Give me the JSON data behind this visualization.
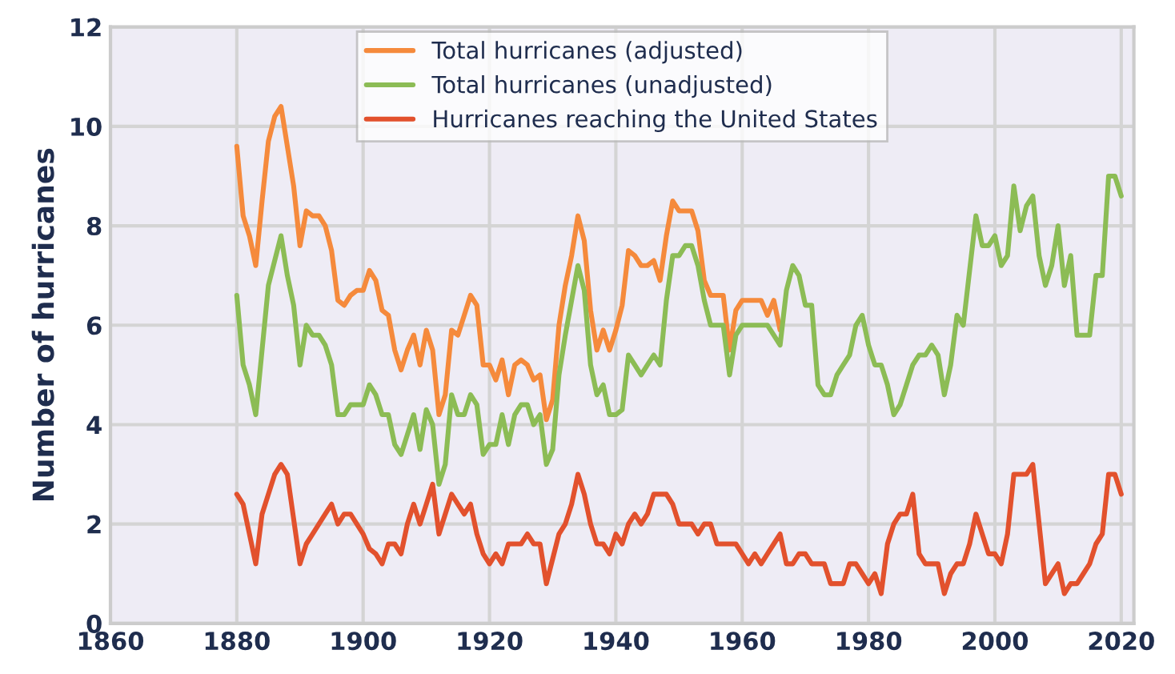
{
  "chart_data": {
    "type": "line",
    "ylabel": "Number of hurricanes",
    "xlim": [
      1860,
      2022
    ],
    "xticks": [
      1860,
      1880,
      1900,
      1920,
      1940,
      1960,
      1980,
      2000,
      2020
    ],
    "ylim": [
      0,
      12
    ],
    "yticks": [
      0,
      2,
      4,
      6,
      8,
      10,
      12
    ],
    "grid": true,
    "legend": "top",
    "marker": "none",
    "line_style": "solid",
    "series": [
      {
        "name": "Total hurricanes (adjusted)",
        "color": "#f58a3c",
        "x": [
          1880,
          1881,
          1882,
          1883,
          1884,
          1885,
          1886,
          1887,
          1888,
          1889,
          1890,
          1891,
          1892,
          1893,
          1894,
          1895,
          1896,
          1897,
          1898,
          1899,
          1900,
          1901,
          1902,
          1903,
          1904,
          1905,
          1906,
          1907,
          1908,
          1909,
          1910,
          1911,
          1912,
          1913,
          1914,
          1915,
          1916,
          1917,
          1918,
          1919,
          1920,
          1921,
          1922,
          1923,
          1924,
          1925,
          1926,
          1927,
          1928,
          1929,
          1930,
          1931,
          1932,
          1933,
          1934,
          1935,
          1936,
          1937,
          1938,
          1939,
          1940,
          1941,
          1942,
          1943,
          1944,
          1945,
          1946,
          1947,
          1948,
          1949,
          1950,
          1951,
          1952,
          1953,
          1954,
          1955,
          1956,
          1957,
          1958,
          1959,
          1960,
          1961,
          1962,
          1963,
          1964,
          1965,
          1966
        ],
        "values": [
          9.6,
          8.2,
          7.8,
          7.2,
          8.5,
          9.7,
          10.2,
          10.4,
          9.6,
          8.8,
          7.6,
          8.3,
          8.2,
          8.2,
          8.0,
          7.5,
          6.5,
          6.4,
          6.6,
          6.7,
          6.7,
          7.1,
          6.9,
          6.3,
          6.2,
          5.5,
          5.1,
          5.5,
          5.8,
          5.2,
          5.9,
          5.5,
          4.2,
          4.6,
          5.9,
          5.8,
          6.2,
          6.6,
          6.4,
          5.2,
          5.2,
          4.9,
          5.3,
          4.6,
          5.2,
          5.3,
          5.2,
          4.9,
          5.0,
          4.1,
          4.5,
          6.0,
          6.8,
          7.4,
          8.2,
          7.7,
          6.3,
          5.5,
          5.9,
          5.5,
          5.9,
          6.4,
          7.5,
          7.4,
          7.2,
          7.2,
          7.3,
          6.9,
          7.8,
          8.5,
          8.3,
          8.3,
          8.3,
          7.9,
          6.9,
          6.6,
          6.6,
          6.6,
          5.5,
          6.3,
          6.5,
          6.5,
          6.5,
          6.5,
          6.2,
          6.5,
          5.9
        ]
      },
      {
        "name": "Total hurricanes (unadjusted)",
        "color": "#8cbc55",
        "x": [
          1880,
          1881,
          1882,
          1883,
          1884,
          1885,
          1886,
          1887,
          1888,
          1889,
          1890,
          1891,
          1892,
          1893,
          1894,
          1895,
          1896,
          1897,
          1898,
          1899,
          1900,
          1901,
          1902,
          1903,
          1904,
          1905,
          1906,
          1907,
          1908,
          1909,
          1910,
          1911,
          1912,
          1913,
          1914,
          1915,
          1916,
          1917,
          1918,
          1919,
          1920,
          1921,
          1922,
          1923,
          1924,
          1925,
          1926,
          1927,
          1928,
          1929,
          1930,
          1931,
          1932,
          1933,
          1934,
          1935,
          1936,
          1937,
          1938,
          1939,
          1940,
          1941,
          1942,
          1943,
          1944,
          1945,
          1946,
          1947,
          1948,
          1949,
          1950,
          1951,
          1952,
          1953,
          1954,
          1955,
          1956,
          1957,
          1958,
          1959,
          1960,
          1961,
          1962,
          1963,
          1964,
          1965,
          1966,
          1967,
          1968,
          1969,
          1970,
          1971,
          1972,
          1973,
          1974,
          1975,
          1976,
          1977,
          1978,
          1979,
          1980,
          1981,
          1982,
          1983,
          1984,
          1985,
          1986,
          1987,
          1988,
          1989,
          1990,
          1991,
          1992,
          1993,
          1994,
          1995,
          1996,
          1997,
          1998,
          1999,
          2000,
          2001,
          2002,
          2003,
          2004,
          2005,
          2006,
          2007,
          2008,
          2009,
          2010,
          2011,
          2012,
          2013,
          2014,
          2015,
          2016,
          2017,
          2018,
          2019,
          2020
        ],
        "values": [
          6.6,
          5.2,
          4.8,
          4.2,
          5.5,
          6.8,
          7.3,
          7.8,
          7.0,
          6.4,
          5.2,
          6.0,
          5.8,
          5.8,
          5.6,
          5.2,
          4.2,
          4.2,
          4.4,
          4.4,
          4.4,
          4.8,
          4.6,
          4.2,
          4.2,
          3.6,
          3.4,
          3.8,
          4.2,
          3.5,
          4.3,
          4.0,
          2.8,
          3.2,
          4.6,
          4.2,
          4.2,
          4.6,
          4.4,
          3.4,
          3.6,
          3.6,
          4.2,
          3.6,
          4.2,
          4.4,
          4.4,
          4.0,
          4.2,
          3.2,
          3.5,
          5.0,
          5.8,
          6.5,
          7.2,
          6.7,
          5.2,
          4.6,
          4.8,
          4.2,
          4.2,
          4.3,
          5.4,
          5.2,
          5.0,
          5.2,
          5.4,
          5.2,
          6.5,
          7.4,
          7.4,
          7.6,
          7.6,
          7.2,
          6.5,
          6.0,
          6.0,
          6.0,
          5.0,
          5.8,
          6.0,
          6.0,
          6.0,
          6.0,
          6.0,
          5.8,
          5.6,
          6.7,
          7.2,
          7.0,
          6.4,
          6.4,
          4.8,
          4.6,
          4.6,
          5.0,
          5.2,
          5.4,
          6.0,
          6.2,
          5.6,
          5.2,
          5.2,
          4.8,
          4.2,
          4.4,
          4.8,
          5.2,
          5.4,
          5.4,
          5.6,
          5.4,
          4.6,
          5.2,
          6.2,
          6.0,
          7.1,
          8.2,
          7.6,
          7.6,
          7.8,
          7.2,
          7.4,
          8.8,
          7.9,
          8.4,
          8.6,
          7.4,
          6.8,
          7.2,
          8.0,
          6.8,
          7.4,
          5.8,
          5.8,
          5.8,
          7.0,
          7.0,
          9.0,
          9.0,
          8.6
        ]
      },
      {
        "name": "Hurricanes reaching the United States",
        "color": "#e2512d",
        "x": [
          1880,
          1881,
          1882,
          1883,
          1884,
          1885,
          1886,
          1887,
          1888,
          1889,
          1890,
          1891,
          1892,
          1893,
          1894,
          1895,
          1896,
          1897,
          1898,
          1899,
          1900,
          1901,
          1902,
          1903,
          1904,
          1905,
          1906,
          1907,
          1908,
          1909,
          1910,
          1911,
          1912,
          1913,
          1914,
          1915,
          1916,
          1917,
          1918,
          1919,
          1920,
          1921,
          1922,
          1923,
          1924,
          1925,
          1926,
          1927,
          1928,
          1929,
          1930,
          1931,
          1932,
          1933,
          1934,
          1935,
          1936,
          1937,
          1938,
          1939,
          1940,
          1941,
          1942,
          1943,
          1944,
          1945,
          1946,
          1947,
          1948,
          1949,
          1950,
          1951,
          1952,
          1953,
          1954,
          1955,
          1956,
          1957,
          1958,
          1959,
          1960,
          1961,
          1962,
          1963,
          1964,
          1965,
          1966,
          1967,
          1968,
          1969,
          1970,
          1971,
          1972,
          1973,
          1974,
          1975,
          1976,
          1977,
          1978,
          1979,
          1980,
          1981,
          1982,
          1983,
          1984,
          1985,
          1986,
          1987,
          1988,
          1989,
          1990,
          1991,
          1992,
          1993,
          1994,
          1995,
          1996,
          1997,
          1998,
          1999,
          2000,
          2001,
          2002,
          2003,
          2004,
          2005,
          2006,
          2007,
          2008,
          2009,
          2010,
          2011,
          2012,
          2013,
          2014,
          2015,
          2016,
          2017,
          2018,
          2019,
          2020
        ],
        "values": [
          2.6,
          2.4,
          1.8,
          1.2,
          2.2,
          2.6,
          3.0,
          3.2,
          3.0,
          2.1,
          1.2,
          1.6,
          1.8,
          2.0,
          2.2,
          2.4,
          2.0,
          2.2,
          2.2,
          2.0,
          1.8,
          1.5,
          1.4,
          1.2,
          1.6,
          1.6,
          1.4,
          2.0,
          2.4,
          2.0,
          2.4,
          2.8,
          1.8,
          2.2,
          2.6,
          2.4,
          2.2,
          2.4,
          1.8,
          1.4,
          1.2,
          1.4,
          1.2,
          1.6,
          1.6,
          1.6,
          1.8,
          1.6,
          1.6,
          0.8,
          1.3,
          1.8,
          2.0,
          2.4,
          3.0,
          2.6,
          2.0,
          1.6,
          1.6,
          1.4,
          1.8,
          1.6,
          2.0,
          2.2,
          2.0,
          2.2,
          2.6,
          2.6,
          2.6,
          2.4,
          2.0,
          2.0,
          2.0,
          1.8,
          2.0,
          2.0,
          1.6,
          1.6,
          1.6,
          1.6,
          1.4,
          1.2,
          1.4,
          1.2,
          1.4,
          1.6,
          1.8,
          1.2,
          1.2,
          1.4,
          1.4,
          1.2,
          1.2,
          1.2,
          0.8,
          0.8,
          0.8,
          1.2,
          1.2,
          1.0,
          0.8,
          1.0,
          0.6,
          1.6,
          2.0,
          2.2,
          2.2,
          2.6,
          1.4,
          1.2,
          1.2,
          1.2,
          0.6,
          1.0,
          1.2,
          1.2,
          1.6,
          2.2,
          1.8,
          1.4,
          1.4,
          1.2,
          1.8,
          3.0,
          3.0,
          3.0,
          3.2,
          2.0,
          0.8,
          1.0,
          1.2,
          0.6,
          0.8,
          0.8,
          1.0,
          1.2,
          1.6,
          1.8,
          3.0,
          3.0,
          2.6
        ]
      }
    ]
  }
}
